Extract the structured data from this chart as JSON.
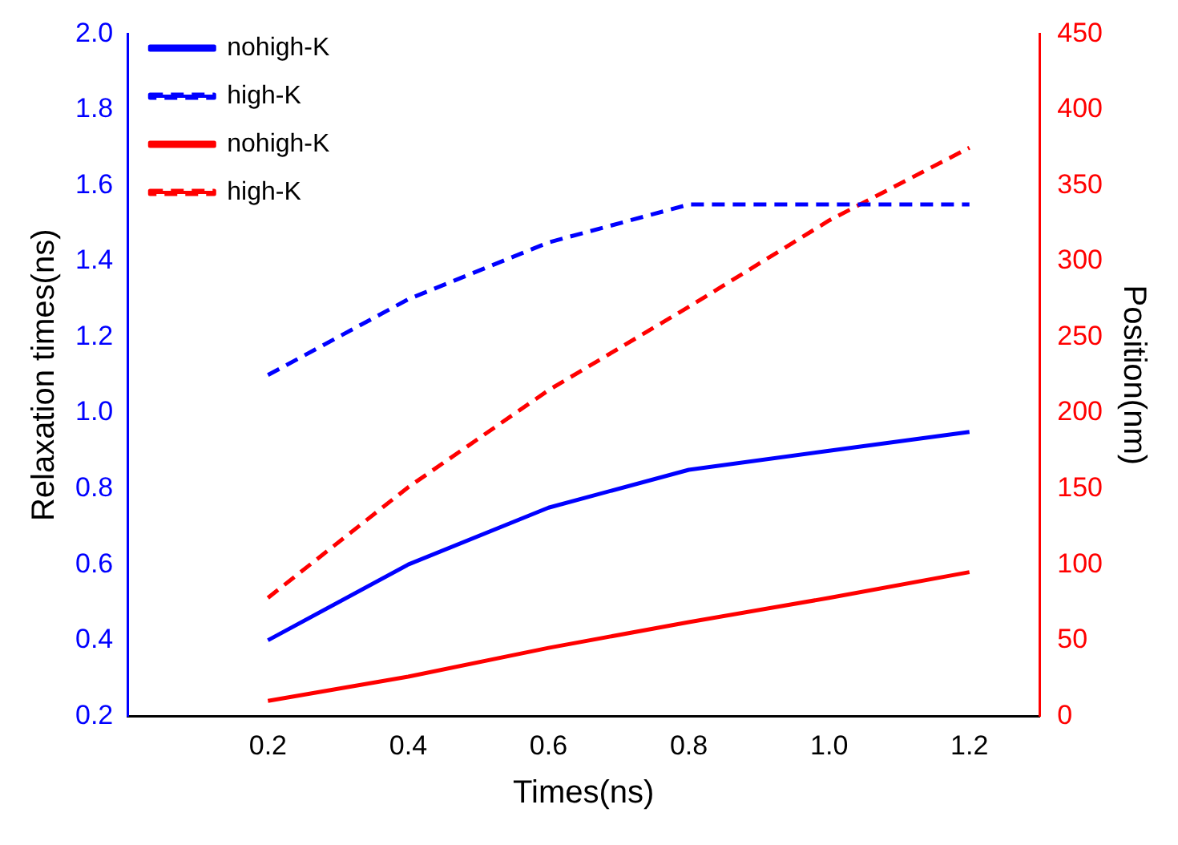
{
  "chart_data": {
    "type": "line",
    "xlabel": "Times(ns)",
    "ylabel": "Relaxation times(ns)",
    "y2label": "Position(nm)",
    "x": [
      0.2,
      0.4,
      0.6,
      0.8,
      1.0,
      1.2
    ],
    "series": [
      {
        "name": "nohigh-K",
        "color": "#0000ff",
        "values": [
          0.4,
          0.6,
          0.75,
          0.85,
          0.9,
          0.95
        ],
        "line_style": "solid"
      },
      {
        "name": "high-K",
        "color": "#0000ff",
        "values": [
          1.1,
          1.3,
          1.45,
          1.55,
          1.55,
          1.55
        ],
        "line_style": "dashed"
      },
      {
        "name": "nohigh-K",
        "color": "#ff0000",
        "values": [
          10,
          26,
          45,
          62,
          78,
          95
        ],
        "line_style": "solid",
        "axis": "y2"
      },
      {
        "name": "high-K",
        "color": "#ff0000",
        "values": [
          78,
          151,
          215,
          270,
          327,
          375
        ],
        "line_style": "dashed",
        "axis": "y2"
      }
    ],
    "xlim": [
      0,
      1.3
    ],
    "xticks": [
      0.2,
      0.4,
      0.6,
      0.8,
      {
        "value": 1,
        "label": "1.0"
      },
      1.2
    ],
    "ylim": [
      0.2,
      2.0
    ],
    "yticks": [
      0.2,
      0.4,
      0.6,
      0.8,
      {
        "value": 1,
        "label": "1.0"
      },
      1.2,
      1.4,
      1.6,
      1.8,
      {
        "value": 2,
        "label": "2.0"
      }
    ],
    "y2lim": [
      0,
      450
    ],
    "y2ticks": [
      0,
      50,
      100,
      150,
      200,
      250,
      300,
      350,
      400,
      450
    ],
    "grid": false,
    "legend": "top left",
    "marker": "none"
  }
}
